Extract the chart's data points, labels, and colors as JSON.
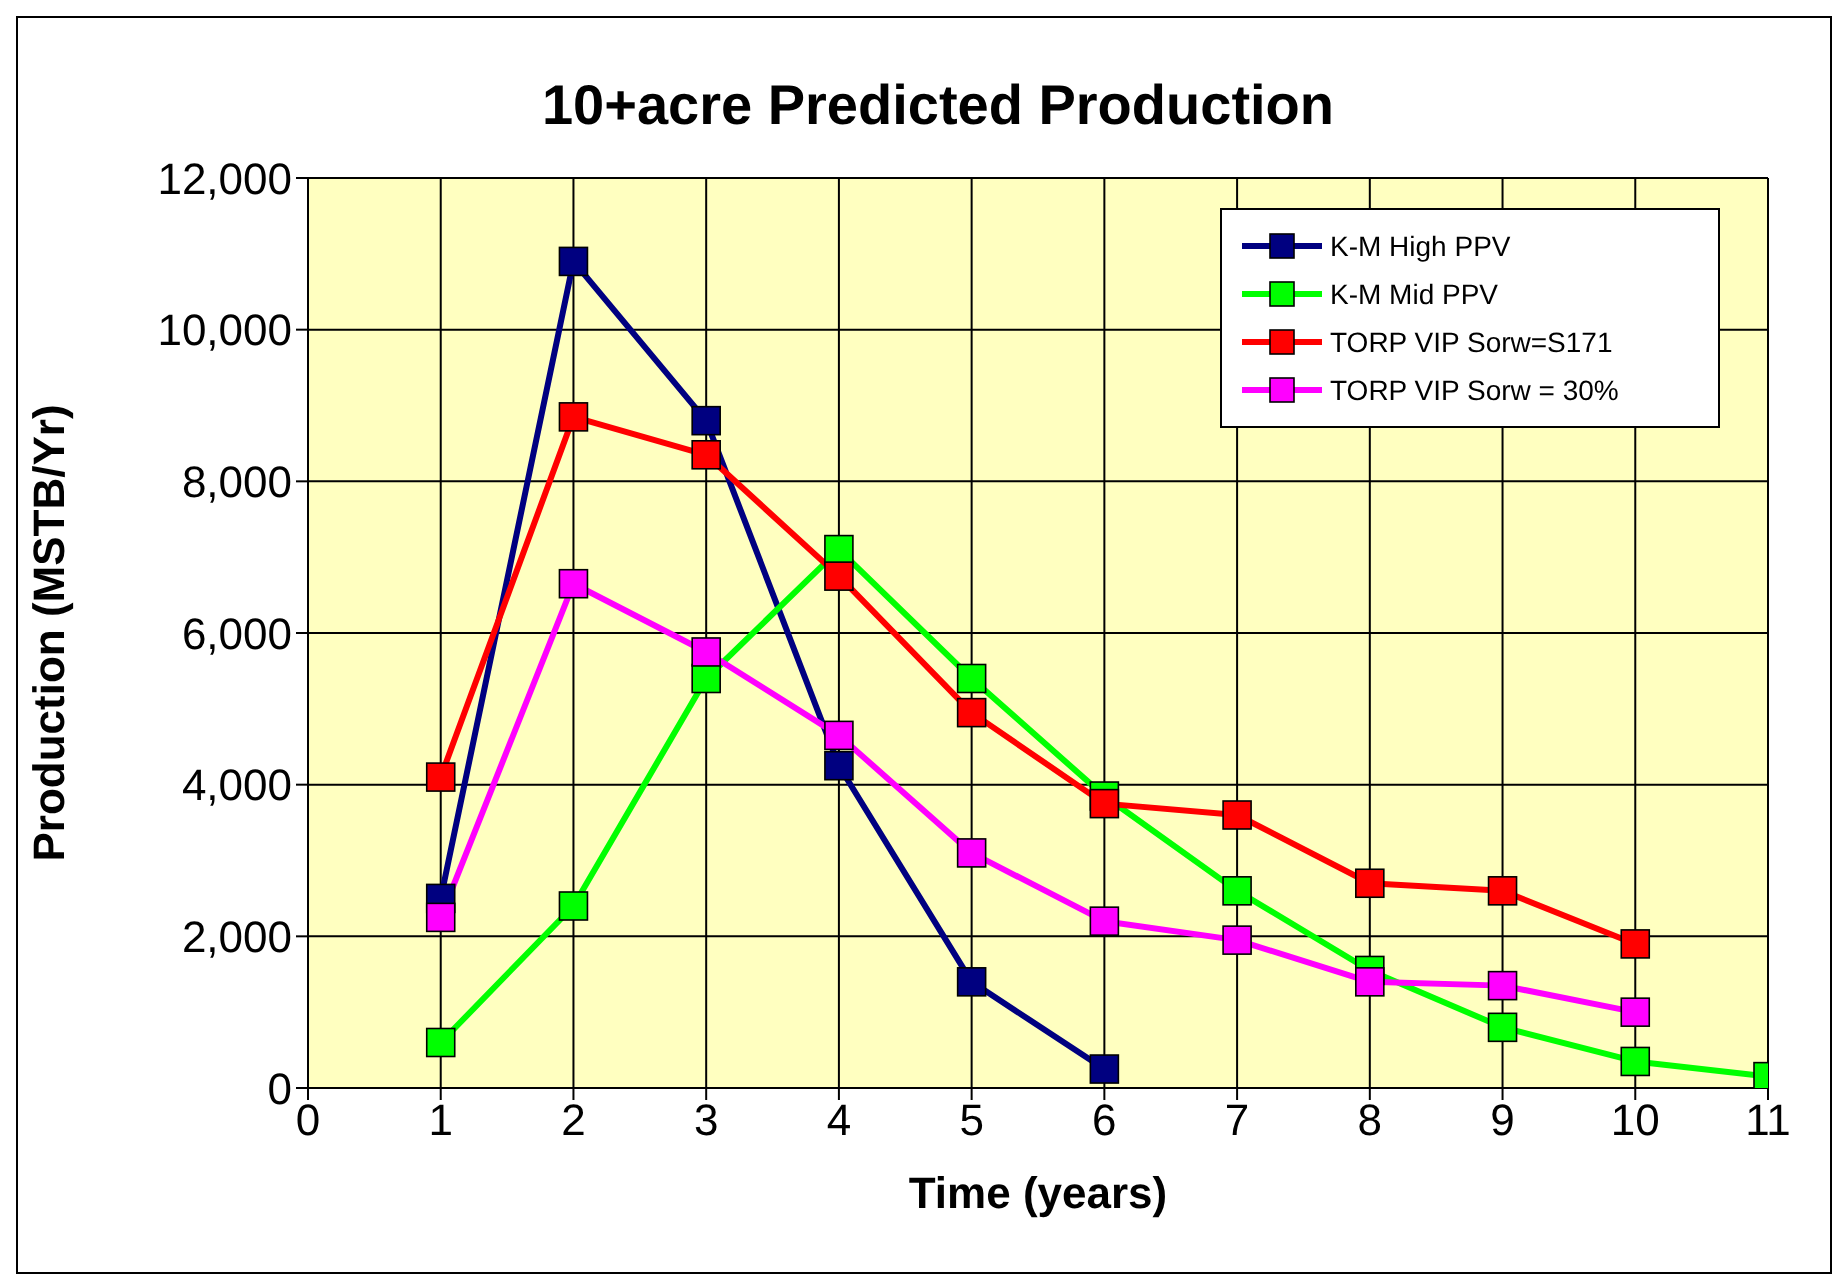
{
  "chart_data": {
    "type": "line",
    "title": "10+acre Predicted Production",
    "xlabel": "Time (years)",
    "ylabel": "Production (MSTB/Yr)",
    "x": [
      1,
      2,
      3,
      4,
      5,
      6,
      7,
      8,
      9,
      10,
      11
    ],
    "series": [
      {
        "name": "K-M High PPV",
        "color": "#000080",
        "values": [
          2500,
          10900,
          8800,
          4250,
          1400,
          250,
          null,
          null,
          null,
          null,
          null
        ]
      },
      {
        "name": "K-M Mid PPV",
        "color": "#00ff00",
        "values": [
          600,
          2400,
          5400,
          7100,
          5400,
          3850,
          2600,
          1550,
          800,
          350,
          150
        ]
      },
      {
        "name": "TORP VIP Sorw=S171",
        "color": "#ff0000",
        "values": [
          4100,
          8850,
          8350,
          6750,
          4950,
          3750,
          3600,
          2700,
          2600,
          1900,
          null
        ]
      },
      {
        "name": "TORP VIP Sorw = 30%",
        "color": "#ff00ff",
        "values": [
          2250,
          6650,
          5750,
          4650,
          3100,
          2200,
          1950,
          1400,
          1350,
          1000,
          null
        ]
      }
    ],
    "xlim": [
      0,
      11
    ],
    "xticks": [
      0,
      1,
      2,
      3,
      4,
      5,
      6,
      7,
      8,
      9,
      10,
      11
    ],
    "ylim": [
      0,
      12000
    ],
    "yticks": [
      0,
      {
        "value": 2000,
        "label": "2,000"
      },
      {
        "value": 4000,
        "label": "4,000"
      },
      {
        "value": 6000,
        "label": "6,000"
      },
      {
        "value": 8000,
        "label": "8,000"
      },
      {
        "value": 10000,
        "label": "10,000"
      },
      {
        "value": 12000,
        "label": "12,000"
      }
    ],
    "grid": true,
    "legend": "top right",
    "marker": "square",
    "line_style": "solid"
  }
}
